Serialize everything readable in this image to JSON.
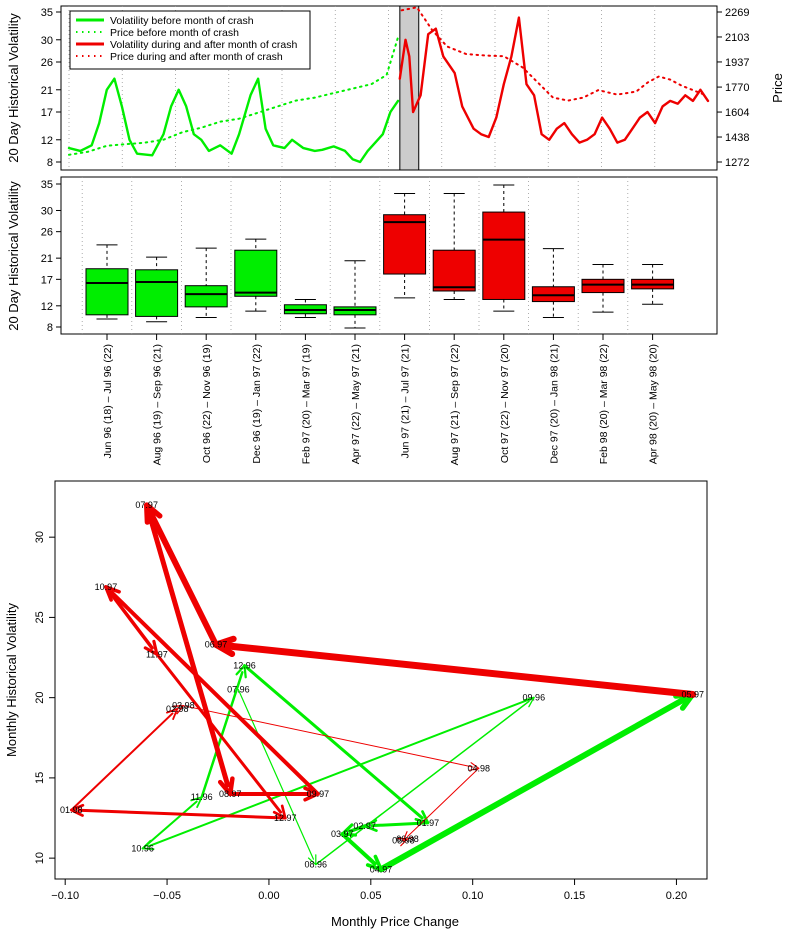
{
  "colors": {
    "before": "#00ee00",
    "after": "#ee0000",
    "crash_band": "#cccccc"
  },
  "chart_data": [
    {
      "type": "line",
      "ylabel": "20 Day Historical Volatility",
      "y2label": "Price",
      "yticks": [
        8,
        12,
        17,
        21,
        26,
        30,
        35
      ],
      "y2ticks": [
        1272,
        1438,
        1604,
        1770,
        1937,
        2103,
        2269
      ],
      "legend_placement": "top-left",
      "legend": [
        "Volatility before month of crash",
        "Price before month of crash",
        "Volatility during and after month of crash",
        "Price during and after month of crash"
      ],
      "vol_before": [
        [
          0,
          10.5
        ],
        [
          6,
          10
        ],
        [
          12,
          11
        ],
        [
          16,
          15
        ],
        [
          20,
          21
        ],
        [
          24,
          23
        ],
        [
          28,
          18
        ],
        [
          32,
          12
        ],
        [
          36,
          9.5
        ],
        [
          44,
          9.2
        ],
        [
          50,
          13
        ],
        [
          54,
          18
        ],
        [
          58,
          21
        ],
        [
          62,
          18
        ],
        [
          66,
          13
        ],
        [
          70,
          12
        ],
        [
          74,
          10
        ],
        [
          80,
          11
        ],
        [
          86,
          9.5
        ],
        [
          90,
          13
        ],
        [
          96,
          20
        ],
        [
          100,
          23
        ],
        [
          104,
          14
        ],
        [
          108,
          11
        ],
        [
          114,
          10.5
        ],
        [
          118,
          12
        ],
        [
          124,
          10.5
        ],
        [
          130,
          10
        ],
        [
          134,
          10.2
        ],
        [
          140,
          10.8
        ],
        [
          146,
          10
        ],
        [
          150,
          8.5
        ],
        [
          154,
          8
        ],
        [
          158,
          10
        ],
        [
          162,
          11.5
        ],
        [
          166,
          13
        ],
        [
          170,
          17
        ],
        [
          174,
          19
        ]
      ],
      "vol_after": [
        [
          175,
          23
        ],
        [
          178,
          30
        ],
        [
          180,
          27
        ],
        [
          182,
          17
        ],
        [
          186,
          20
        ],
        [
          190,
          31
        ],
        [
          194,
          32
        ],
        [
          198,
          27
        ],
        [
          204,
          24
        ],
        [
          208,
          18
        ],
        [
          214,
          14
        ],
        [
          218,
          13
        ],
        [
          222,
          12.5
        ],
        [
          226,
          16
        ],
        [
          230,
          22
        ],
        [
          234,
          27
        ],
        [
          238,
          34
        ],
        [
          242,
          22
        ],
        [
          246,
          20
        ],
        [
          250,
          13
        ],
        [
          254,
          12
        ],
        [
          258,
          14
        ],
        [
          262,
          15
        ],
        [
          266,
          13
        ],
        [
          270,
          11.5
        ],
        [
          274,
          12
        ],
        [
          278,
          13
        ],
        [
          282,
          16
        ],
        [
          286,
          14
        ],
        [
          290,
          11.5
        ],
        [
          294,
          12
        ],
        [
          298,
          14
        ],
        [
          302,
          16
        ],
        [
          306,
          17
        ],
        [
          310,
          15
        ],
        [
          314,
          18
        ],
        [
          318,
          19
        ],
        [
          322,
          18.5
        ],
        [
          326,
          20
        ],
        [
          330,
          19
        ],
        [
          334,
          21
        ],
        [
          338,
          19
        ]
      ],
      "price_before": [
        [
          0,
          1320
        ],
        [
          10,
          1340
        ],
        [
          20,
          1380
        ],
        [
          30,
          1390
        ],
        [
          40,
          1400
        ],
        [
          50,
          1420
        ],
        [
          60,
          1470
        ],
        [
          70,
          1500
        ],
        [
          80,
          1540
        ],
        [
          90,
          1560
        ],
        [
          100,
          1600
        ],
        [
          110,
          1640
        ],
        [
          120,
          1680
        ],
        [
          130,
          1700
        ],
        [
          140,
          1730
        ],
        [
          150,
          1760
        ],
        [
          160,
          1790
        ],
        [
          168,
          1850
        ],
        [
          174,
          2100
        ]
      ],
      "price_after": [
        [
          176,
          2280
        ],
        [
          184,
          2300
        ],
        [
          192,
          2150
        ],
        [
          200,
          2040
        ],
        [
          210,
          1990
        ],
        [
          220,
          1980
        ],
        [
          230,
          1975
        ],
        [
          240,
          1900
        ],
        [
          248,
          1800
        ],
        [
          256,
          1700
        ],
        [
          264,
          1680
        ],
        [
          272,
          1700
        ],
        [
          280,
          1750
        ],
        [
          290,
          1720
        ],
        [
          300,
          1740
        ],
        [
          306,
          1800
        ],
        [
          312,
          1840
        ],
        [
          318,
          1820
        ],
        [
          324,
          1780
        ],
        [
          330,
          1750
        ],
        [
          336,
          1720
        ]
      ],
      "crash_band": [
        175,
        185
      ]
    },
    {
      "type": "box",
      "ylabel": "20 Day Historical Volatility",
      "yticks": [
        8,
        12,
        17,
        21,
        26,
        30,
        35
      ],
      "categories": [
        "Jun 96 (18) – Jul 96 (22)",
        "Aug 96 (19) – Sep 96 (21)",
        "Oct 96 (22) – Nov 96 (19)",
        "Dec 96 (19) – Jan 97 (22)",
        "Feb 97 (20) – Mar 97 (19)",
        "Apr 97 (22) – May 97 (21)",
        "Jun 97 (21) – Jul 97 (21)",
        "Aug 97 (21) – Sep 97 (22)",
        "Oct 97 (22) – Nov 97 (20)",
        "Dec 97 (20) – Jan 98 (21)",
        "Feb 98 (20) – Mar 98 (22)",
        "Apr 98 (20) – May 98 (20)"
      ],
      "boxes": [
        {
          "min": 9.5,
          "q1": 10.3,
          "median": 16.3,
          "q3": 19,
          "max": 23.5,
          "group": "before"
        },
        {
          "min": 9.0,
          "q1": 10.0,
          "median": 16.5,
          "q3": 18.8,
          "max": 21.2,
          "group": "before"
        },
        {
          "min": 9.8,
          "q1": 11.8,
          "median": 14.2,
          "q3": 15.8,
          "max": 22.9,
          "group": "before"
        },
        {
          "min": 11.0,
          "q1": 13.8,
          "median": 14.5,
          "q3": 22.5,
          "max": 24.6,
          "group": "before"
        },
        {
          "min": 9.8,
          "q1": 10.5,
          "median": 11.2,
          "q3": 12.2,
          "max": 13.2,
          "group": "before"
        },
        {
          "min": 7.8,
          "q1": 10.3,
          "median": 11.2,
          "q3": 11.8,
          "max": 20.5,
          "group": "before"
        },
        {
          "min": 13.5,
          "q1": 18.0,
          "median": 27.8,
          "q3": 29.2,
          "max": 33.2,
          "group": "after"
        },
        {
          "min": 13.2,
          "q1": 14.8,
          "median": 15.5,
          "q3": 22.5,
          "max": 33.2,
          "group": "after"
        },
        {
          "min": 11.0,
          "q1": 13.2,
          "median": 24.5,
          "q3": 29.7,
          "max": 34.8,
          "group": "after"
        },
        {
          "min": 9.8,
          "q1": 12.8,
          "median": 14.0,
          "q3": 15.6,
          "max": 22.8,
          "group": "after"
        },
        {
          "min": 10.8,
          "q1": 14.5,
          "median": 16.0,
          "q3": 17.0,
          "max": 19.8,
          "group": "after"
        },
        {
          "min": 12.3,
          "q1": 15.2,
          "median": 16.0,
          "q3": 17.0,
          "max": 19.8,
          "group": "after"
        }
      ]
    },
    {
      "type": "scatter",
      "xlabel": "Monthly Price Change",
      "ylabel": "Monthly Historical Volatility",
      "xticks": [
        "−0.10",
        "−0.05",
        "0.00",
        "0.05",
        "0.10",
        "0.15",
        "0.20"
      ],
      "xtick_values": [
        -0.1,
        -0.05,
        0.0,
        0.05,
        0.1,
        0.15,
        0.2
      ],
      "yticks": [
        "10",
        "15",
        "20",
        "25",
        "30"
      ],
      "ytick_values": [
        10,
        15,
        20,
        25,
        30
      ],
      "xlim": [
        -0.105,
        0.215
      ],
      "ylim": [
        8.7,
        33.5
      ],
      "points": [
        {
          "label": "07.96",
          "x": -0.015,
          "y": 20.5
        },
        {
          "label": "08.96",
          "x": 0.023,
          "y": 9.6
        },
        {
          "label": "09.96",
          "x": 0.13,
          "y": 20.0
        },
        {
          "label": "10.96",
          "x": -0.062,
          "y": 10.6
        },
        {
          "label": "11.96",
          "x": -0.033,
          "y": 13.8
        },
        {
          "label": "12.96",
          "x": -0.012,
          "y": 22.0
        },
        {
          "label": "01.97",
          "x": 0.078,
          "y": 12.2
        },
        {
          "label": "02.97",
          "x": 0.047,
          "y": 12.0
        },
        {
          "label": "03.97",
          "x": 0.036,
          "y": 11.5
        },
        {
          "label": "04.97",
          "x": 0.055,
          "y": 9.3
        },
        {
          "label": "05.97",
          "x": 0.208,
          "y": 20.2
        },
        {
          "label": "06.97",
          "x": -0.026,
          "y": 23.3
        },
        {
          "label": "07.97",
          "x": -0.06,
          "y": 32.0
        },
        {
          "label": "08.97",
          "x": -0.019,
          "y": 14.0
        },
        {
          "label": "09.97",
          "x": 0.024,
          "y": 14.0
        },
        {
          "label": "10.97",
          "x": -0.08,
          "y": 26.9
        },
        {
          "label": "11.97",
          "x": -0.055,
          "y": 22.7
        },
        {
          "label": "12.97",
          "x": 0.008,
          "y": 12.5
        },
        {
          "label": "01.98",
          "x": -0.097,
          "y": 13.0
        },
        {
          "label": "02.98",
          "x": -0.045,
          "y": 19.3
        },
        {
          "label": "03.98",
          "x": -0.042,
          "y": 19.5
        },
        {
          "label": "04.98",
          "x": 0.103,
          "y": 15.6
        },
        {
          "label": "05.98",
          "x": 0.066,
          "y": 11.1
        },
        {
          "label": "06.98",
          "x": 0.068,
          "y": 11.2
        }
      ],
      "arrows": [
        {
          "from": 0,
          "to": 1,
          "group": "before",
          "w": 1.2
        },
        {
          "from": 1,
          "to": 2,
          "group": "before",
          "w": 1.5
        },
        {
          "from": 2,
          "to": 3,
          "group": "before",
          "w": 2
        },
        {
          "from": 3,
          "to": 4,
          "group": "before",
          "w": 2
        },
        {
          "from": 4,
          "to": 5,
          "group": "before",
          "w": 2.5
        },
        {
          "from": 5,
          "to": 6,
          "group": "before",
          "w": 3
        },
        {
          "from": 6,
          "to": 7,
          "group": "before",
          "w": 3
        },
        {
          "from": 7,
          "to": 8,
          "group": "before",
          "w": 3.5
        },
        {
          "from": 8,
          "to": 9,
          "group": "before",
          "w": 4
        },
        {
          "from": 9,
          "to": 10,
          "group": "before",
          "w": 6
        },
        {
          "from": 10,
          "to": 11,
          "group": "after",
          "w": 7
        },
        {
          "from": 11,
          "to": 12,
          "group": "after",
          "w": 6
        },
        {
          "from": 12,
          "to": 13,
          "group": "after",
          "w": 5
        },
        {
          "from": 13,
          "to": 14,
          "group": "after",
          "w": 4
        },
        {
          "from": 14,
          "to": 15,
          "group": "after",
          "w": 4
        },
        {
          "from": 15,
          "to": 16,
          "group": "after",
          "w": 3.5
        },
        {
          "from": 16,
          "to": 17,
          "group": "after",
          "w": 3
        },
        {
          "from": 17,
          "to": 18,
          "group": "after",
          "w": 3
        },
        {
          "from": 18,
          "to": 19,
          "group": "after",
          "w": 2
        },
        {
          "from": 19,
          "to": 20,
          "group": "after",
          "w": 1.5
        },
        {
          "from": 20,
          "to": 21,
          "group": "after",
          "w": 1
        },
        {
          "from": 21,
          "to": 22,
          "group": "after",
          "w": 1
        },
        {
          "from": 22,
          "to": 23,
          "group": "after",
          "w": 1
        }
      ]
    }
  ]
}
